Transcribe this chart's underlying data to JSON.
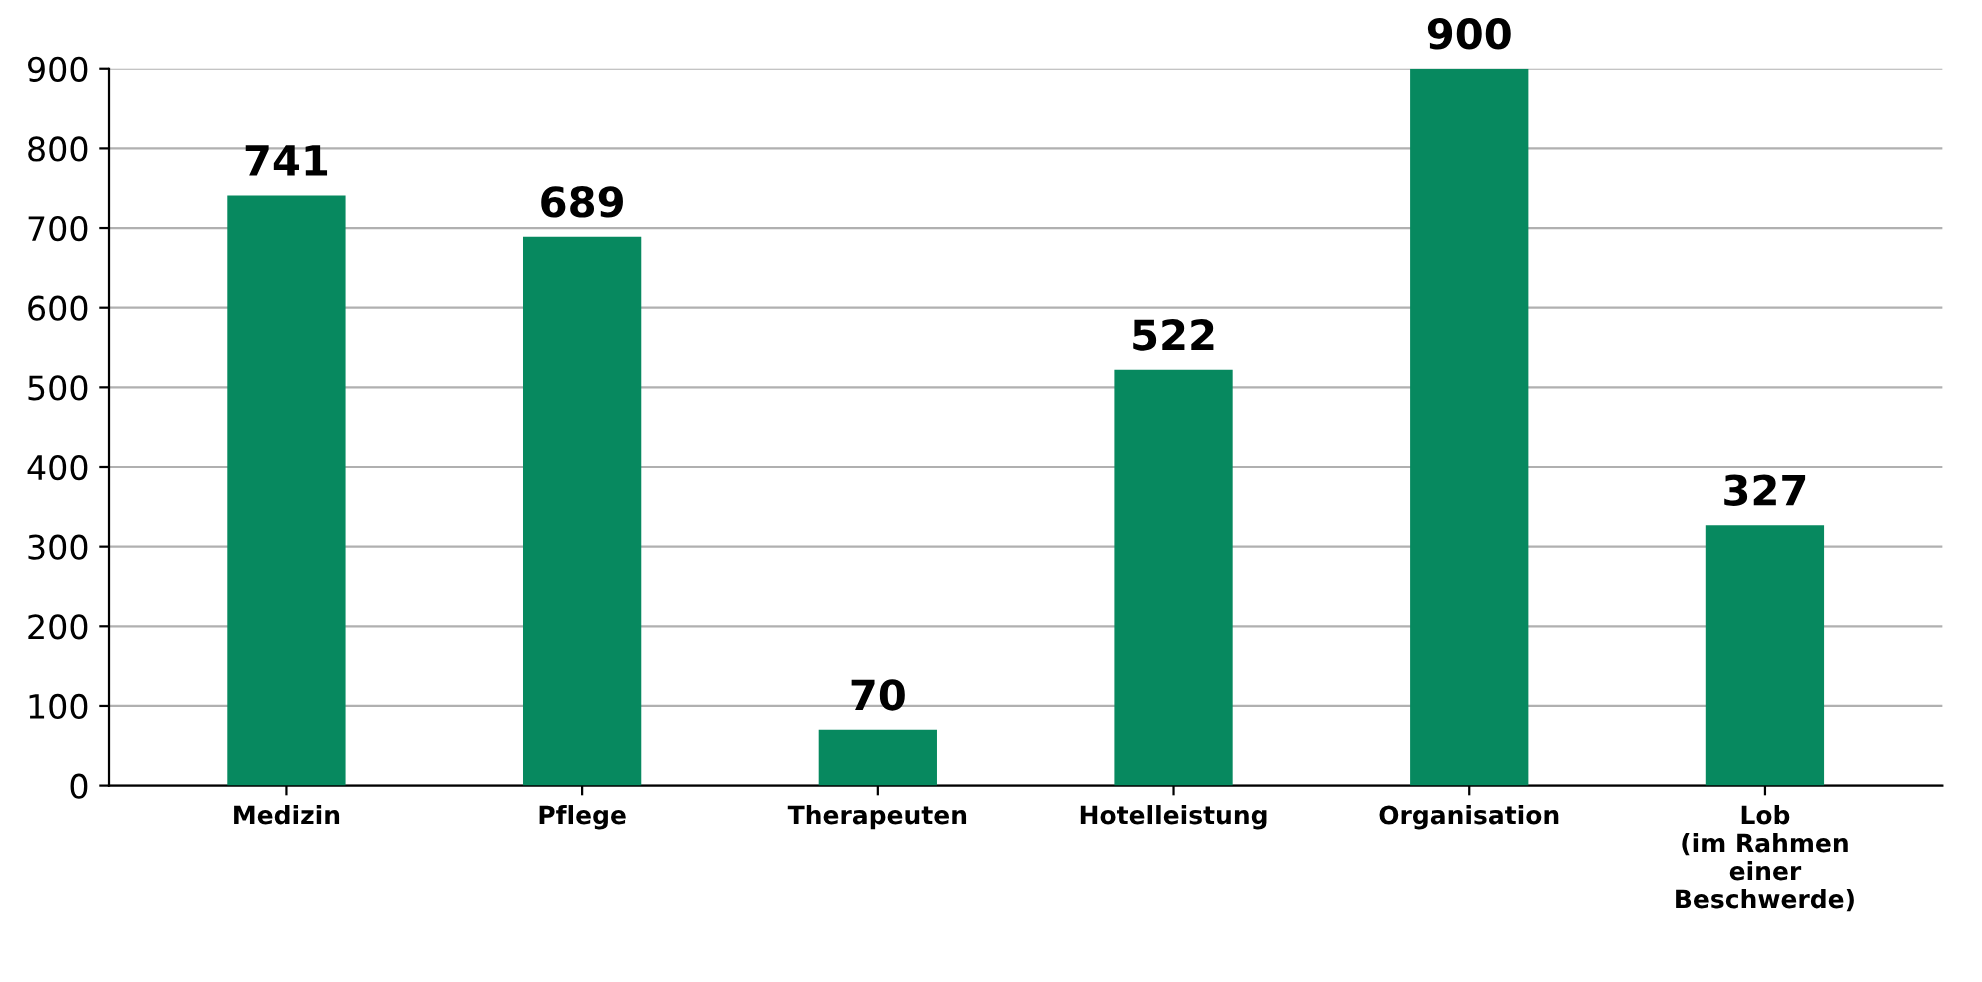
{
  "chart_data": {
    "type": "bar",
    "categories": [
      "Medizin",
      "Pflege",
      "Therapeuten",
      "Hotelleistung",
      "Organisation",
      "Lob\n(im Rahmen\neiner\nBeschwerde)"
    ],
    "values": [
      741,
      689,
      70,
      522,
      900,
      327
    ],
    "color": "#07895f",
    "ylim": [
      0,
      900
    ],
    "yticks": [
      0,
      100,
      200,
      300,
      400,
      500,
      600,
      700,
      800,
      900
    ],
    "grid": "y",
    "data_labels": true
  }
}
